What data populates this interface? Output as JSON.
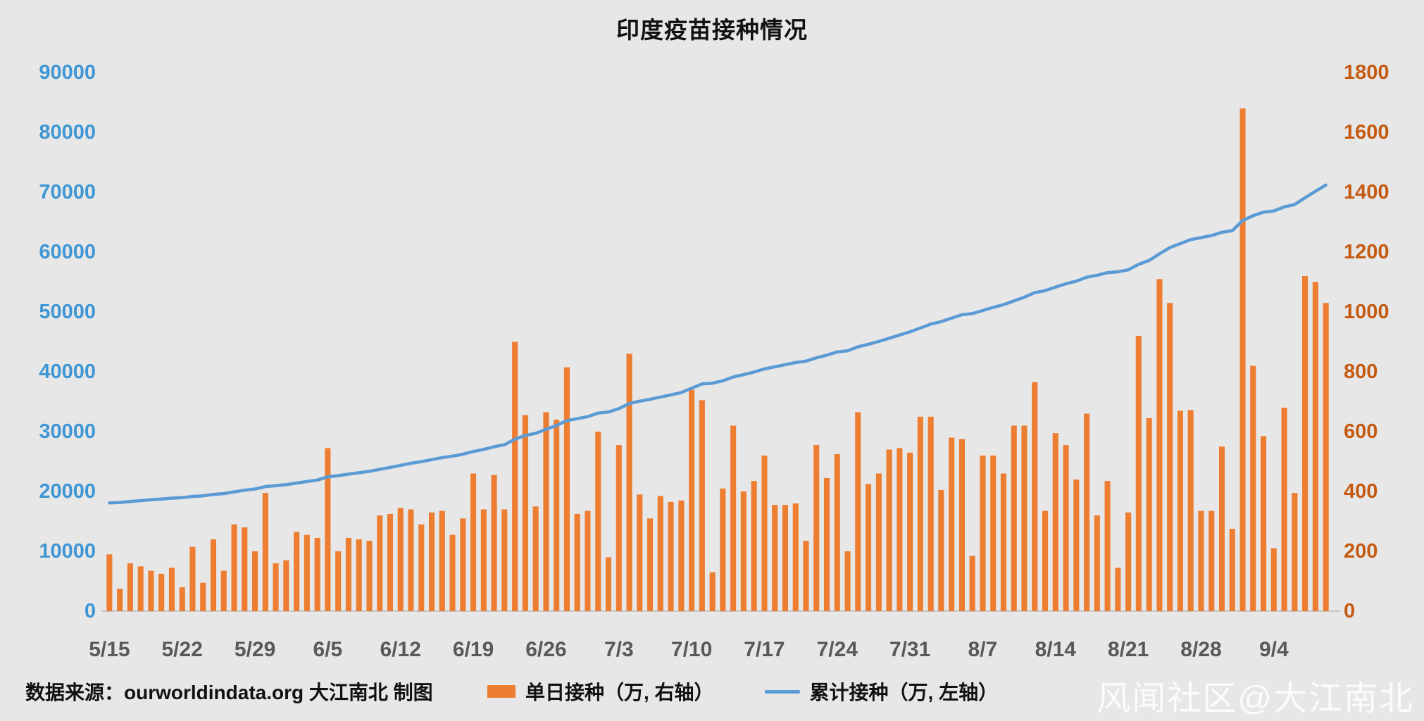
{
  "title": "印度疫苗接种情况",
  "source_note": "数据来源：ourworldindata.org 大江南北 制图",
  "watermark": "风闻社区@大江南北",
  "colors": {
    "bar": "#ED7D31",
    "line": "#5B9BD5",
    "left_axis_text": "#3E96D4",
    "right_axis_text": "#C55A11",
    "x_axis_text": "#595959",
    "background": "#e7e7e7"
  },
  "legend": [
    {
      "label": "单日接种（万, 右轴）",
      "type": "bar",
      "color": "#ED7D31"
    },
    {
      "label": "累计接种（万, 左轴）",
      "type": "line",
      "color": "#5B9BD5"
    }
  ],
  "chart_data": {
    "type": "bar",
    "combo": "bar+line",
    "title": "印度疫苗接种情况",
    "x_start_label": "5/15",
    "x_tick_interval_days": 7,
    "x_tick_labels": [
      "5/15",
      "5/22",
      "5/29",
      "6/5",
      "6/12",
      "6/19",
      "6/26",
      "7/3",
      "7/10",
      "7/17",
      "7/24",
      "7/31",
      "8/7",
      "8/14",
      "8/21",
      "8/28",
      "9/4"
    ],
    "left_axis": {
      "label": "累计接种（万）",
      "min": 0,
      "max": 90000,
      "step": 10000,
      "color": "#3E96D4"
    },
    "right_axis": {
      "label": "单日接种（万）",
      "min": 0,
      "max": 1800,
      "step": 200,
      "color": "#C55A11"
    },
    "grid": false,
    "legend_position": "bottom",
    "series": [
      {
        "name": "单日接种（万, 右轴）",
        "type": "bar",
        "axis": "right",
        "color": "#ED7D31",
        "values": [
          190,
          75,
          160,
          150,
          135,
          125,
          145,
          80,
          215,
          95,
          240,
          135,
          290,
          280,
          200,
          395,
          160,
          170,
          265,
          255,
          245,
          545,
          200,
          245,
          240,
          235,
          320,
          325,
          345,
          340,
          290,
          330,
          335,
          255,
          310,
          460,
          340,
          455,
          340,
          900,
          655,
          350,
          665,
          640,
          815,
          325,
          335,
          600,
          180,
          555,
          860,
          390,
          310,
          385,
          365,
          370,
          740,
          705,
          130,
          410,
          620,
          400,
          435,
          520,
          355,
          355,
          360,
          235,
          555,
          445,
          525,
          200,
          665,
          425,
          460,
          540,
          545,
          530,
          650,
          650,
          405,
          580,
          575,
          185,
          520,
          520,
          460,
          620,
          620,
          765,
          335,
          595,
          555,
          440,
          660,
          320,
          435,
          145,
          330,
          920,
          645,
          1110,
          1030,
          670,
          672,
          335,
          335,
          550,
          275,
          1680,
          820,
          585,
          210,
          680,
          395,
          1120,
          1100,
          1030
        ]
      },
      {
        "name": "累计接种（万, 左轴）",
        "type": "line",
        "axis": "left",
        "color": "#5B9BD5",
        "derived": "cumulative_sum_of_daily_series",
        "start_value": 17900,
        "end_value_approx": 71400
      }
    ]
  }
}
